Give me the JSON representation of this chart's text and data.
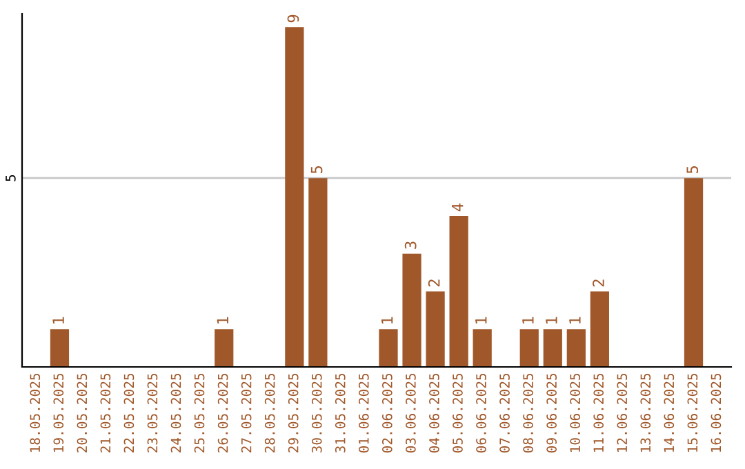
{
  "chart_data": {
    "type": "bar",
    "categories": [
      "18.05.2025",
      "19.05.2025",
      "20.05.2025",
      "21.05.2025",
      "22.05.2025",
      "23.05.2025",
      "24.05.2025",
      "25.05.2025",
      "26.05.2025",
      "27.05.2025",
      "28.05.2025",
      "29.05.2025",
      "30.05.2025",
      "31.05.2025",
      "01.06.2025",
      "02.06.2025",
      "03.06.2025",
      "04.06.2025",
      "05.06.2025",
      "06.06.2025",
      "07.06.2025",
      "08.06.2025",
      "09.06.2025",
      "10.06.2025",
      "11.06.2025",
      "12.06.2025",
      "13.06.2025",
      "14.06.2025",
      "15.06.2025",
      "16.06.2025"
    ],
    "values": [
      0,
      1,
      0,
      0,
      0,
      0,
      0,
      0,
      1,
      0,
      0,
      9,
      5,
      0,
      0,
      1,
      3,
      2,
      4,
      1,
      0,
      1,
      1,
      1,
      2,
      0,
      0,
      0,
      5,
      0
    ],
    "value_labels": [
      null,
      "1",
      null,
      null,
      null,
      null,
      null,
      null,
      "1",
      null,
      null,
      "9",
      "5",
      null,
      null,
      "1",
      "3",
      "2",
      "4",
      "1",
      null,
      "1",
      "1",
      "1",
      "2",
      null,
      null,
      null,
      "5",
      null
    ],
    "color": "#a0582a",
    "ylim": [
      0,
      9.35
    ],
    "yticks": [
      5
    ],
    "grid": "y",
    "legend": false
  }
}
